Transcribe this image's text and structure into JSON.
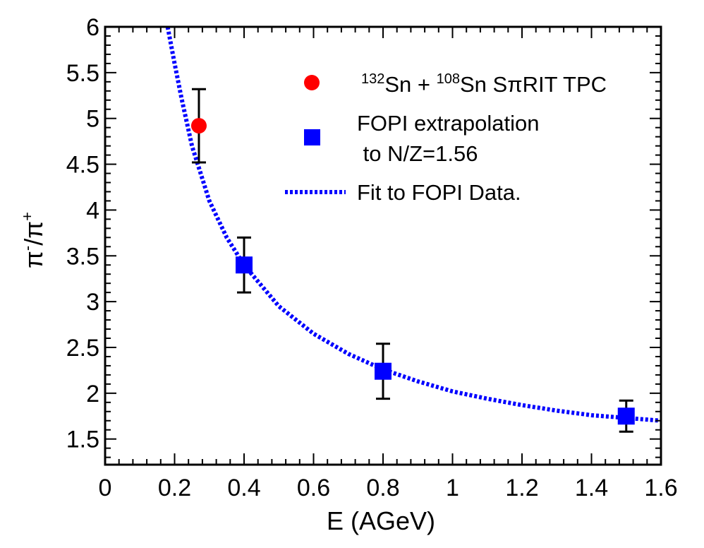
{
  "chart_data": {
    "type": "scatter",
    "xlabel": "E (AGeV)",
    "ylabel": {
      "base1": "π",
      "sup1": "-",
      "mid": "/π",
      "sup2": "+"
    },
    "xlim": [
      0,
      1.6
    ],
    "ylim": [
      1.22,
      6
    ],
    "x_ticks": [
      "0",
      "0.2",
      "0.4",
      "0.6",
      "0.8",
      "1",
      "1.2",
      "1.4",
      "1.6"
    ],
    "y_ticks": [
      "1.5",
      "2",
      "2.5",
      "3",
      "3.5",
      "4",
      "4.5",
      "5",
      "5.5",
      "6"
    ],
    "grid": false,
    "legend_position": "top-right",
    "series": [
      {
        "name": {
          "sup1": "132",
          "mid1": "Sn + ",
          "sup2": "108",
          "mid2": "Sn SπRIT TPC"
        },
        "marker": "circle",
        "color": "#ff0000",
        "points": [
          {
            "x": 0.27,
            "y": 4.92,
            "err": 0.4
          }
        ]
      },
      {
        "name": {
          "line1": "FOPI extrapolation",
          "line2": " to N/Z=1.56"
        },
        "marker": "square",
        "color": "#0000ff",
        "points": [
          {
            "x": 0.4,
            "y": 3.4,
            "err": 0.3
          },
          {
            "x": 0.8,
            "y": 2.24,
            "err": 0.3
          },
          {
            "x": 1.5,
            "y": 1.75,
            "err": 0.17
          }
        ]
      },
      {
        "name": "Fit to FOPI Data.",
        "marker": "dotted-line",
        "color": "#0000ff",
        "curve": [
          {
            "x": 0.18,
            "y": 6.0
          },
          {
            "x": 0.2,
            "y": 5.6
          },
          {
            "x": 0.22,
            "y": 5.22
          },
          {
            "x": 0.25,
            "y": 4.7
          },
          {
            "x": 0.3,
            "y": 4.1
          },
          {
            "x": 0.35,
            "y": 3.7
          },
          {
            "x": 0.4,
            "y": 3.4
          },
          {
            "x": 0.5,
            "y": 2.95
          },
          {
            "x": 0.6,
            "y": 2.65
          },
          {
            "x": 0.7,
            "y": 2.43
          },
          {
            "x": 0.8,
            "y": 2.26
          },
          {
            "x": 0.9,
            "y": 2.13
          },
          {
            "x": 1.0,
            "y": 2.02
          },
          {
            "x": 1.1,
            "y": 1.94
          },
          {
            "x": 1.2,
            "y": 1.87
          },
          {
            "x": 1.3,
            "y": 1.81
          },
          {
            "x": 1.4,
            "y": 1.76
          },
          {
            "x": 1.5,
            "y": 1.73
          },
          {
            "x": 1.6,
            "y": 1.7
          }
        ]
      }
    ]
  }
}
